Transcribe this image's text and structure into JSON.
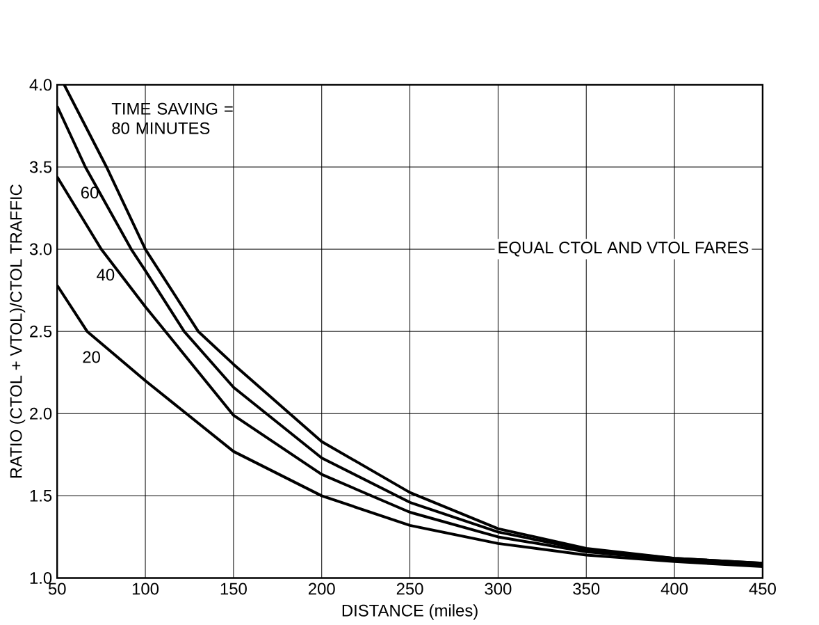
{
  "chart_data": {
    "type": "line",
    "xlabel": "DISTANCE (miles)",
    "ylabel": "RATIO (CTOL + VTOL)/CTOL TRAFFIC",
    "xlim": [
      50,
      450
    ],
    "xticks": [
      50,
      100,
      150,
      200,
      250,
      300,
      350,
      400,
      450
    ],
    "ylim": [
      1.0,
      4.0
    ],
    "yticks": [
      {
        "value": 1.0,
        "label": "1.0"
      },
      {
        "value": 1.5,
        "label": "1.5"
      },
      {
        "value": 2.0,
        "label": "2.0"
      },
      {
        "value": 2.5,
        "label": "2.5"
      },
      {
        "value": 3.0,
        "label": "3.0"
      },
      {
        "value": 3.5,
        "label": "3.5"
      },
      {
        "value": 4.0,
        "label": "4.0"
      }
    ],
    "grid": true,
    "legend": false,
    "marker": "none",
    "line_style": "solid",
    "annotations": [
      "EQUAL CTOL AND VTOL FARES"
    ],
    "series": [
      {
        "name": "TIME SAVING = 80 MINUTES",
        "color": "#000000",
        "x": [
          54,
          78,
          100,
          130,
          150,
          200,
          250,
          300,
          350,
          400,
          450
        ],
        "values": [
          4.0,
          3.5,
          3.0,
          2.5,
          2.3,
          1.83,
          1.52,
          1.3,
          1.18,
          1.12,
          1.09
        ]
      },
      {
        "name": "60",
        "color": "#000000",
        "x": [
          50,
          66,
          92,
          100,
          122,
          150,
          200,
          250,
          300,
          350,
          400,
          450
        ],
        "values": [
          3.87,
          3.5,
          3.0,
          2.87,
          2.5,
          2.16,
          1.73,
          1.46,
          1.28,
          1.17,
          1.12,
          1.09
        ]
      },
      {
        "name": "40",
        "color": "#000000",
        "x": [
          50,
          75,
          100,
          150,
          200,
          250,
          300,
          350,
          400,
          450
        ],
        "values": [
          3.44,
          3.0,
          2.65,
          1.99,
          1.63,
          1.4,
          1.25,
          1.16,
          1.11,
          1.08
        ]
      },
      {
        "name": "20",
        "color": "#000000",
        "x": [
          50,
          67,
          100,
          150,
          200,
          250,
          300,
          350,
          400,
          450
        ],
        "values": [
          2.78,
          2.5,
          2.2,
          1.77,
          1.5,
          1.32,
          1.21,
          1.14,
          1.1,
          1.07
        ]
      }
    ]
  }
}
